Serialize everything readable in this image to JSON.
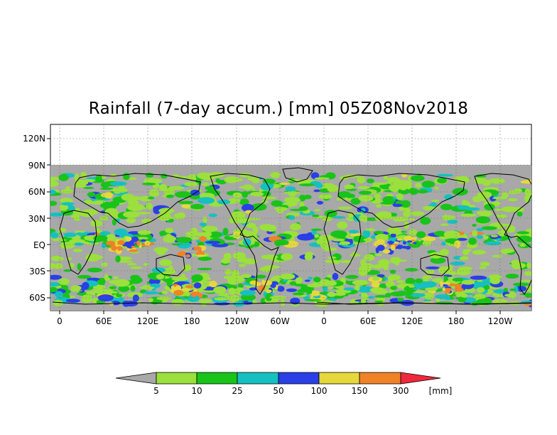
{
  "title": "Rainfall (7-day accum.) [mm] 05Z08Nov2018",
  "map": {
    "lat_labels": [
      "120N",
      "90N",
      "60N",
      "30N",
      "EQ",
      "30S",
      "60S"
    ],
    "lon_labels": [
      "0",
      "60E",
      "120E",
      "180",
      "120W",
      "60W",
      "0",
      "60E",
      "120E",
      "180",
      "120W"
    ],
    "lat_range": [
      -75,
      135
    ],
    "lon_range": [
      -10,
      640
    ],
    "land_mask_color": "#a8a8a8",
    "grid": true
  },
  "colorbar": {
    "unit": "[mm]",
    "thresholds": [
      "5",
      "10",
      "25",
      "50",
      "100",
      "150",
      "300"
    ],
    "colors": [
      "#a8a8a8",
      "#9be03c",
      "#18c418",
      "#16c0c0",
      "#2a3fe6",
      "#e6d83c",
      "#f08228",
      "#f0283c"
    ]
  }
}
